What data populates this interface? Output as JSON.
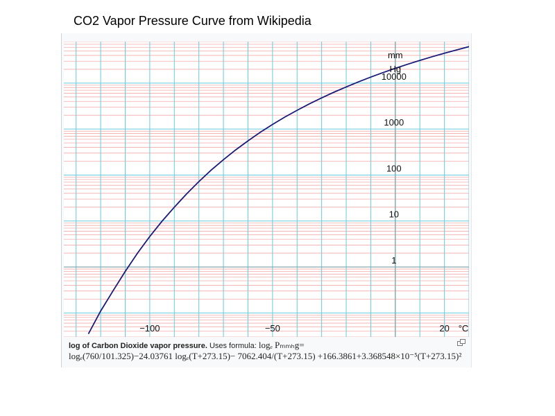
{
  "page": {
    "title": "CO2 Vapor Pressure Curve from Wikipedia"
  },
  "caption": {
    "bold_text": "log of Carbon Dioxide vapor pressure.",
    "uses_text": "Uses formula:",
    "formula_lhs": "logₑ Pₘₘₕg=",
    "formula_line2": "logₑ(760/101.325)−24.03761 logₑ(T+273.15)− 7062.404/(T+273.15) +166.3861+3.368548×10⁻⁵(T+273.15)²",
    "enlarge_icon": "enlarge-icon"
  },
  "chart_data": {
    "type": "line",
    "x_unit": "°C",
    "y_unit_line1": "mm",
    "y_unit_line2": "Hg",
    "y_scale": "log",
    "xlim": [
      -135,
      30
    ],
    "ylim": [
      0.03,
      80000
    ],
    "x_ticks": [
      {
        "value": -100,
        "label": "−100"
      },
      {
        "value": -50,
        "label": "−50"
      },
      {
        "value": 20,
        "label": "20"
      }
    ],
    "y_ticks": [
      {
        "value": 1,
        "label": "1"
      },
      {
        "value": 10,
        "label": "10"
      },
      {
        "value": 100,
        "label": "100"
      },
      {
        "value": 1000,
        "label": "1000"
      },
      {
        "value": 10000,
        "label": "10000"
      }
    ],
    "grid": true,
    "colors": {
      "curve": "#1a1a7a",
      "major_grid": "#66ccdd",
      "minor_grid": "#f2aaaa",
      "axis_line": "#7aa0a8"
    },
    "series": [
      {
        "values": [
          {
            "x": -125,
            "y": 0.035
          },
          {
            "x": -120,
            "y": 0.11
          },
          {
            "x": -115,
            "y": 0.3
          },
          {
            "x": -110,
            "y": 0.8
          },
          {
            "x": -105,
            "y": 2.0
          },
          {
            "x": -100,
            "y": 4.6
          },
          {
            "x": -95,
            "y": 9.9
          },
          {
            "x": -90,
            "y": 20
          },
          {
            "x": -85,
            "y": 39
          },
          {
            "x": -80,
            "y": 72
          },
          {
            "x": -75,
            "y": 128
          },
          {
            "x": -70,
            "y": 216
          },
          {
            "x": -65,
            "y": 353
          },
          {
            "x": -60,
            "y": 556
          },
          {
            "x": -55,
            "y": 850
          },
          {
            "x": -50,
            "y": 1260
          },
          {
            "x": -45,
            "y": 1820
          },
          {
            "x": -40,
            "y": 2560
          },
          {
            "x": -35,
            "y": 3530
          },
          {
            "x": -30,
            "y": 4770
          },
          {
            "x": -25,
            "y": 6330
          },
          {
            "x": -20,
            "y": 8260
          },
          {
            "x": -15,
            "y": 10630
          },
          {
            "x": -10,
            "y": 13500
          },
          {
            "x": -5,
            "y": 16920
          },
          {
            "x": 0,
            "y": 20970
          },
          {
            "x": 5,
            "y": 25700
          },
          {
            "x": 10,
            "y": 31200
          },
          {
            "x": 15,
            "y": 37500
          },
          {
            "x": 20,
            "y": 44700
          },
          {
            "x": 25,
            "y": 52800
          },
          {
            "x": 30,
            "y": 62000
          }
        ]
      }
    ]
  }
}
